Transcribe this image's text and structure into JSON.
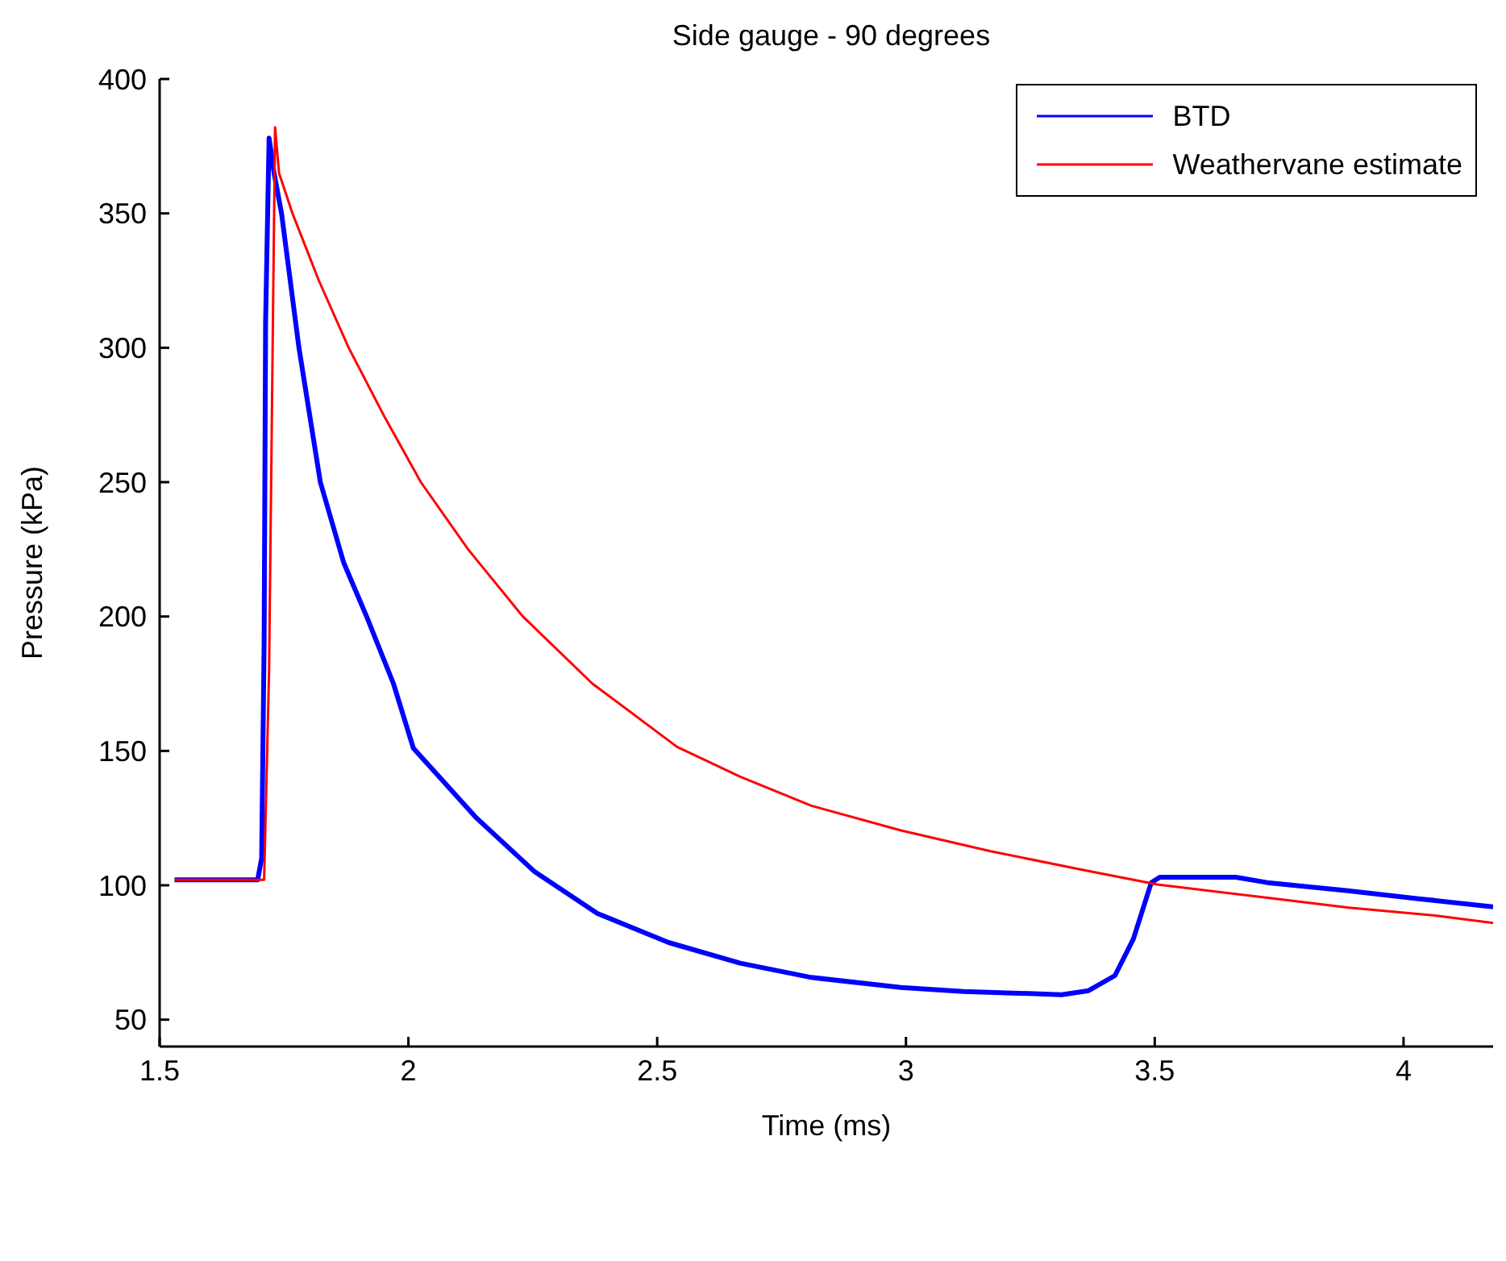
{
  "chart_data": {
    "type": "line",
    "title": "Side gauge - 90 degrees",
    "xlabel": "Time (ms)",
    "ylabel": "Pressure (kPa)",
    "xlim": [
      1.5,
      4.18
    ],
    "xticks": [
      {
        "value": 1.5,
        "label": "1.5"
      },
      2,
      {
        "value": 2.5,
        "label": "2.5"
      },
      3,
      {
        "value": 3.5,
        "label": "3.5"
      },
      4
    ],
    "ylim": [
      40,
      400
    ],
    "yticks": [
      50,
      100,
      150,
      200,
      250,
      300,
      350,
      400
    ],
    "grid": false,
    "legend": "top right",
    "marker": "none",
    "line_style": "solid",
    "series": [
      {
        "name": "BTD",
        "color": "#0000ff",
        "x": [
          1.53,
          1.697,
          1.705,
          1.71,
          1.713,
          1.72,
          1.73,
          1.745,
          1.78,
          1.823,
          1.87,
          1.916,
          1.97,
          2.01,
          2.137,
          2.254,
          2.38,
          2.523,
          2.667,
          2.81,
          2.99,
          3.116,
          3.313,
          3.367,
          3.42,
          3.457,
          3.493,
          3.51,
          3.663,
          3.726,
          3.888,
          4.03,
          4.18
        ],
        "values": [
          102,
          102,
          110,
          190,
          310,
          378,
          365,
          350,
          300,
          250,
          220,
          200,
          175,
          151,
          125,
          105,
          89.5,
          78.7,
          71,
          65.7,
          62,
          60.5,
          59.3,
          60.8,
          66.4,
          80,
          101,
          103,
          103,
          101,
          98,
          95,
          92
        ]
      },
      {
        "name": "Weathervane estimate",
        "color": "#ff0000",
        "x": [
          1.53,
          1.71,
          1.72,
          1.732,
          1.74,
          1.767,
          1.82,
          1.88,
          1.95,
          2.025,
          2.12,
          2.23,
          2.37,
          2.54,
          2.667,
          2.81,
          2.99,
          3.17,
          3.35,
          3.505,
          3.71,
          3.89,
          4.07,
          4.18
        ],
        "values": [
          102,
          102,
          180,
          382,
          365,
          350,
          325,
          300,
          275,
          250,
          225,
          200,
          175,
          151.5,
          140.4,
          129.6,
          120.4,
          112.7,
          105.9,
          100.3,
          95.7,
          91.7,
          88.6,
          86
        ]
      }
    ]
  }
}
